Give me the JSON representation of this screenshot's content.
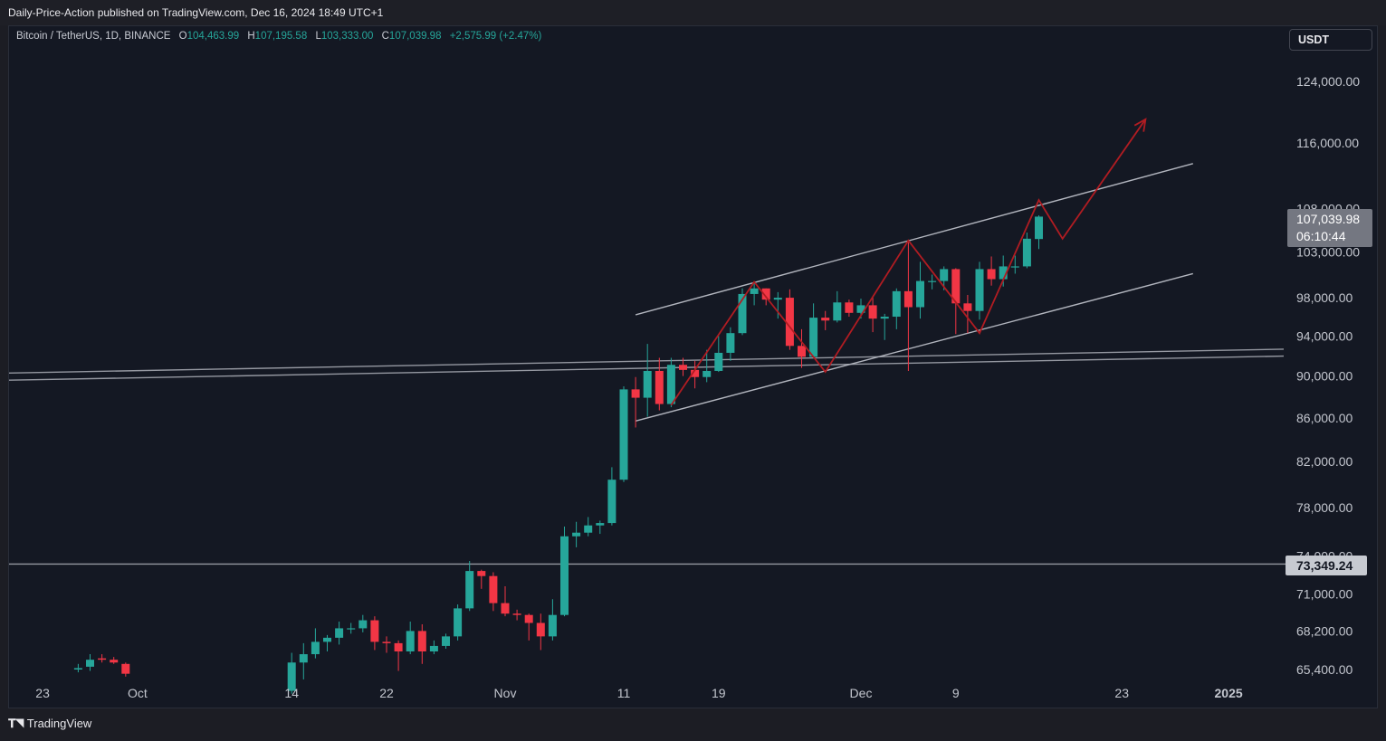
{
  "publish_line": "Daily-Price-Action published on TradingView.com, Dec 16, 2024 18:49 UTC+1",
  "symbol": {
    "name": "Bitcoin / TetherUS, 1D, BINANCE",
    "open_label": "O",
    "open": "104,463.99",
    "high_label": "H",
    "high": "107,195.58",
    "low_label": "L",
    "low": "103,333.00",
    "close_label": "C",
    "close": "107,039.98",
    "change": "+2,575.99 (+2.47%)"
  },
  "currency": "USDT",
  "price_tag": {
    "price": "107,039.98",
    "countdown": "06:10:44"
  },
  "level_tag": "73,349.24",
  "footer_logo": "TradingView",
  "colors": {
    "up": "#26a69a",
    "down": "#f23645",
    "background": "#141823",
    "drawing": "#b2b5be",
    "projection": "#b01c22"
  },
  "chart_data": {
    "type": "candlestick",
    "symbol": "BTCUSDT",
    "timeframe": "1D",
    "y_axis": {
      "scale": "log",
      "ticks": [
        "124,000.00",
        "116,000.00",
        "108,000.00",
        "103,000.00",
        "98,000.00",
        "94,000.00",
        "90,000.00",
        "86,000.00",
        "82,000.00",
        "78,000.00",
        "74,000.00",
        "71,000.00",
        "68,200.00",
        "65,400.00"
      ],
      "range": [
        63800,
        128000
      ]
    },
    "x_axis": {
      "ticks": [
        {
          "label": "23",
          "date": "2024-09-23"
        },
        {
          "label": "Oct",
          "date": "2024-10-01"
        },
        {
          "label": "14",
          "date": "2024-10-14"
        },
        {
          "label": "22",
          "date": "2024-10-22"
        },
        {
          "label": "Nov",
          "date": "2024-11-01"
        },
        {
          "label": "11",
          "date": "2024-11-11"
        },
        {
          "label": "19",
          "date": "2024-11-19"
        },
        {
          "label": "Dec",
          "date": "2024-12-01"
        },
        {
          "label": "9",
          "date": "2024-12-09"
        },
        {
          "label": "23",
          "date": "2024-12-23"
        },
        {
          "label": "2025",
          "date": "2025-01-01"
        }
      ]
    },
    "candles": [
      {
        "d": "2024-09-26",
        "o": 65400,
        "h": 65800,
        "l": 65200,
        "c": 65500
      },
      {
        "d": "2024-09-27",
        "o": 65600,
        "h": 66500,
        "l": 65300,
        "c": 66100
      },
      {
        "d": "2024-09-28",
        "o": 66200,
        "h": 66500,
        "l": 65900,
        "c": 66100
      },
      {
        "d": "2024-09-29",
        "o": 66100,
        "h": 66300,
        "l": 65800,
        "c": 65900
      },
      {
        "d": "2024-09-30",
        "o": 65800,
        "h": 65900,
        "l": 64900,
        "c": 65100
      },
      {
        "d": "2024-10-14",
        "o": 63900,
        "h": 66600,
        "l": 63700,
        "c": 65900
      },
      {
        "d": "2024-10-15",
        "o": 65900,
        "h": 67300,
        "l": 64700,
        "c": 66500
      },
      {
        "d": "2024-10-16",
        "o": 66500,
        "h": 68400,
        "l": 66200,
        "c": 67400
      },
      {
        "d": "2024-10-17",
        "o": 67400,
        "h": 67900,
        "l": 66700,
        "c": 67700
      },
      {
        "d": "2024-10-18",
        "o": 67700,
        "h": 68900,
        "l": 67200,
        "c": 68400
      },
      {
        "d": "2024-10-19",
        "o": 68400,
        "h": 68800,
        "l": 68000,
        "c": 68400
      },
      {
        "d": "2024-10-20",
        "o": 68400,
        "h": 69400,
        "l": 68100,
        "c": 69000
      },
      {
        "d": "2024-10-21",
        "o": 69000,
        "h": 69300,
        "l": 66800,
        "c": 67400
      },
      {
        "d": "2024-10-22",
        "o": 67400,
        "h": 67800,
        "l": 66600,
        "c": 67300
      },
      {
        "d": "2024-10-23",
        "o": 67300,
        "h": 67500,
        "l": 65300,
        "c": 66700
      },
      {
        "d": "2024-10-24",
        "o": 66700,
        "h": 68900,
        "l": 66500,
        "c": 68200
      },
      {
        "d": "2024-10-25",
        "o": 68200,
        "h": 68700,
        "l": 65800,
        "c": 66700
      },
      {
        "d": "2024-10-26",
        "o": 66700,
        "h": 67500,
        "l": 66500,
        "c": 67100
      },
      {
        "d": "2024-10-27",
        "o": 67100,
        "h": 68000,
        "l": 66900,
        "c": 67800
      },
      {
        "d": "2024-10-28",
        "o": 67800,
        "h": 70200,
        "l": 67500,
        "c": 69900
      },
      {
        "d": "2024-10-29",
        "o": 69900,
        "h": 73600,
        "l": 69700,
        "c": 72800
      },
      {
        "d": "2024-10-30",
        "o": 72800,
        "h": 72900,
        "l": 71400,
        "c": 72400
      },
      {
        "d": "2024-10-31",
        "o": 72400,
        "h": 72700,
        "l": 69700,
        "c": 70300
      },
      {
        "d": "2024-11-01",
        "o": 70300,
        "h": 71600,
        "l": 69300,
        "c": 69500
      },
      {
        "d": "2024-11-02",
        "o": 69500,
        "h": 69800,
        "l": 69000,
        "c": 69400
      },
      {
        "d": "2024-11-03",
        "o": 69400,
        "h": 69500,
        "l": 67500,
        "c": 68800
      },
      {
        "d": "2024-11-04",
        "o": 68800,
        "h": 69500,
        "l": 66800,
        "c": 67800
      },
      {
        "d": "2024-11-05",
        "o": 67800,
        "h": 70600,
        "l": 67500,
        "c": 69400
      },
      {
        "d": "2024-11-06",
        "o": 69400,
        "h": 76400,
        "l": 69300,
        "c": 75600
      },
      {
        "d": "2024-11-07",
        "o": 75600,
        "h": 76800,
        "l": 74700,
        "c": 75900
      },
      {
        "d": "2024-11-08",
        "o": 75900,
        "h": 77200,
        "l": 75600,
        "c": 76500
      },
      {
        "d": "2024-11-09",
        "o": 76500,
        "h": 76900,
        "l": 75800,
        "c": 76700
      },
      {
        "d": "2024-11-10",
        "o": 76700,
        "h": 81500,
        "l": 76500,
        "c": 80400
      },
      {
        "d": "2024-11-11",
        "o": 80400,
        "h": 89000,
        "l": 80200,
        "c": 88700
      },
      {
        "d": "2024-11-12",
        "o": 88700,
        "h": 89900,
        "l": 85100,
        "c": 87900
      },
      {
        "d": "2024-11-13",
        "o": 87900,
        "h": 93200,
        "l": 86100,
        "c": 90500
      },
      {
        "d": "2024-11-14",
        "o": 90500,
        "h": 91800,
        "l": 86700,
        "c": 87300
      },
      {
        "d": "2024-11-15",
        "o": 87300,
        "h": 91800,
        "l": 87000,
        "c": 91100
      },
      {
        "d": "2024-11-16",
        "o": 91100,
        "h": 91800,
        "l": 90000,
        "c": 90600
      },
      {
        "d": "2024-11-17",
        "o": 90600,
        "h": 91500,
        "l": 88800,
        "c": 89900
      },
      {
        "d": "2024-11-18",
        "o": 89900,
        "h": 92600,
        "l": 89400,
        "c": 90500
      },
      {
        "d": "2024-11-19",
        "o": 90500,
        "h": 94000,
        "l": 90400,
        "c": 92300
      },
      {
        "d": "2024-11-20",
        "o": 92300,
        "h": 94900,
        "l": 91500,
        "c": 94300
      },
      {
        "d": "2024-11-21",
        "o": 94300,
        "h": 99000,
        "l": 94100,
        "c": 98400
      },
      {
        "d": "2024-11-22",
        "o": 98400,
        "h": 99600,
        "l": 97200,
        "c": 99000
      },
      {
        "d": "2024-11-23",
        "o": 99000,
        "h": 99000,
        "l": 97200,
        "c": 97800
      },
      {
        "d": "2024-11-24",
        "o": 97800,
        "h": 98600,
        "l": 95800,
        "c": 98000
      },
      {
        "d": "2024-11-25",
        "o": 98000,
        "h": 98900,
        "l": 92600,
        "c": 93000
      },
      {
        "d": "2024-11-26",
        "o": 93000,
        "h": 94700,
        "l": 90800,
        "c": 91900
      },
      {
        "d": "2024-11-27",
        "o": 91900,
        "h": 97400,
        "l": 91800,
        "c": 95900
      },
      {
        "d": "2024-11-28",
        "o": 95900,
        "h": 96600,
        "l": 94600,
        "c": 95600
      },
      {
        "d": "2024-11-29",
        "o": 95600,
        "h": 98700,
        "l": 95400,
        "c": 97500
      },
      {
        "d": "2024-11-30",
        "o": 97500,
        "h": 97800,
        "l": 96000,
        "c": 96400
      },
      {
        "d": "2024-12-01",
        "o": 96400,
        "h": 97900,
        "l": 95800,
        "c": 97200
      },
      {
        "d": "2024-12-02",
        "o": 97200,
        "h": 98100,
        "l": 94400,
        "c": 95800
      },
      {
        "d": "2024-12-03",
        "o": 95800,
        "h": 96300,
        "l": 93600,
        "c": 96000
      },
      {
        "d": "2024-12-04",
        "o": 96000,
        "h": 99000,
        "l": 94700,
        "c": 98700
      },
      {
        "d": "2024-12-05",
        "o": 98700,
        "h": 104100,
        "l": 90500,
        "c": 97000
      },
      {
        "d": "2024-12-06",
        "o": 97000,
        "h": 101900,
        "l": 95800,
        "c": 99800
      },
      {
        "d": "2024-12-07",
        "o": 99800,
        "h": 100500,
        "l": 98900,
        "c": 99800
      },
      {
        "d": "2024-12-08",
        "o": 99800,
        "h": 101400,
        "l": 98800,
        "c": 101100
      },
      {
        "d": "2024-12-09",
        "o": 101100,
        "h": 101200,
        "l": 94200,
        "c": 97400
      },
      {
        "d": "2024-12-10",
        "o": 97400,
        "h": 98300,
        "l": 94300,
        "c": 96600
      },
      {
        "d": "2024-12-11",
        "o": 96600,
        "h": 101900,
        "l": 95700,
        "c": 101100
      },
      {
        "d": "2024-12-12",
        "o": 101100,
        "h": 102500,
        "l": 99300,
        "c": 100000
      },
      {
        "d": "2024-12-13",
        "o": 100000,
        "h": 102600,
        "l": 99200,
        "c": 101400
      },
      {
        "d": "2024-12-14",
        "o": 101400,
        "h": 102600,
        "l": 100600,
        "c": 101400
      },
      {
        "d": "2024-12-15",
        "o": 101400,
        "h": 105200,
        "l": 101200,
        "c": 104500
      },
      {
        "d": "2024-12-16",
        "o": 104464,
        "h": 107196,
        "l": 103333,
        "c": 107040
      }
    ],
    "drawings": {
      "horizontal_level": {
        "price": 73349.24
      },
      "support_band": [
        {
          "d1": "2024-09-16",
          "p1": 90200,
          "d2": "2025-01-07",
          "p2": 92700
        },
        {
          "d1": "2024-09-16",
          "p1": 89500,
          "d2": "2025-01-07",
          "p2": 92000
        }
      ],
      "ascending_channel": [
        {
          "d1": "2024-11-12",
          "p1": 96200,
          "d2": "2024-12-29",
          "p2": 113400
        },
        {
          "d1": "2024-11-12",
          "p1": 85700,
          "d2": "2024-12-29",
          "p2": 100600
        }
      ],
      "projection_path": [
        {
          "d": "2024-11-15",
          "p": 87200
        },
        {
          "d": "2024-11-22",
          "p": 99700
        },
        {
          "d": "2024-11-28",
          "p": 90400
        },
        {
          "d": "2024-12-05",
          "p": 104300
        },
        {
          "d": "2024-12-11",
          "p": 94300
        },
        {
          "d": "2024-12-16",
          "p": 109000
        },
        {
          "d": "2024-12-18",
          "p": 104500
        },
        {
          "d": "2024-12-25",
          "p": 119000
        }
      ]
    }
  }
}
